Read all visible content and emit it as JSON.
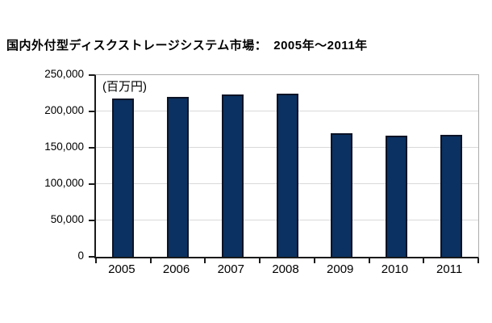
{
  "title": "国内外付型ディスクストレージシステム市場：　2005年～2011年",
  "chart_data": {
    "type": "bar",
    "title": "国内外付型ディスクストレージシステム市場：　2005年～2011年",
    "unit_label": "(百万円)",
    "xlabel": "",
    "ylabel": "",
    "categories": [
      "2005",
      "2006",
      "2007",
      "2008",
      "2009",
      "2010",
      "2011"
    ],
    "values": [
      218000,
      220000,
      223000,
      225000,
      170000,
      167000,
      168000
    ],
    "ylim": [
      0,
      250000
    ],
    "ytick_interval": 50000,
    "ytick_labels": [
      "0",
      "50,000",
      "100,000",
      "150,000",
      "200,000",
      "250,000"
    ],
    "grid": true,
    "legend": false,
    "colors": {
      "bar_fill": "#0a3161",
      "bar_border": "#0c1326",
      "gridline": "#d9d9d9",
      "axis": "#1a1a1a",
      "plot_border": "#ababab",
      "text": "#000000",
      "background": "#ffffff"
    }
  }
}
